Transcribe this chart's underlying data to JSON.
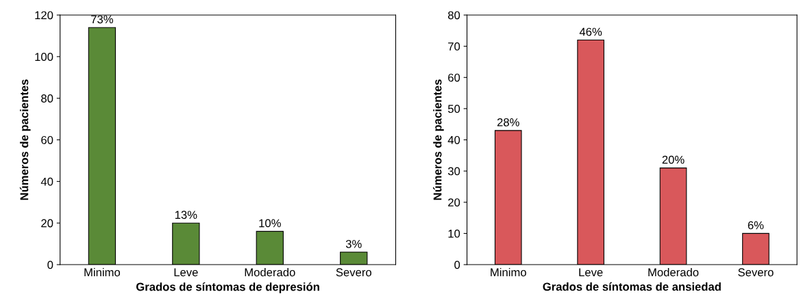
{
  "chart_data": [
    {
      "type": "bar",
      "categories": [
        "Minimo",
        "Leve",
        "Moderado",
        "Severo"
      ],
      "values": [
        114,
        20,
        16,
        6
      ],
      "color": "#5a8a37",
      "xlabel": "Grados de síntomas de depresión",
      "ylabel": "Números de pacientes",
      "ylim": [
        0,
        120
      ],
      "yticks": [
        0,
        20,
        40,
        60,
        80,
        100,
        120
      ],
      "grid": false,
      "legend": false,
      "annotations": [
        {
          "text": "73%",
          "x": "Minimo",
          "y": 114
        },
        {
          "text": "13%",
          "x": "Leve",
          "y": 20
        },
        {
          "text": "10%",
          "x": "Moderado",
          "y": 16
        },
        {
          "text": "3%",
          "x": "Severo",
          "y": 6
        }
      ]
    },
    {
      "type": "bar",
      "categories": [
        "Minimo",
        "Leve",
        "Moderado",
        "Severo"
      ],
      "values": [
        43,
        72,
        31,
        10
      ],
      "color": "#d9585b",
      "xlabel": "Grados de síntomas de ansiedad",
      "ylabel": "Números de pacientes",
      "ylim": [
        0,
        80
      ],
      "yticks": [
        0,
        10,
        20,
        30,
        40,
        50,
        60,
        70,
        80
      ],
      "grid": false,
      "legend": false,
      "annotations": [
        {
          "text": "28%",
          "x": "Minimo",
          "y": 43
        },
        {
          "text": "46%",
          "x": "Leve",
          "y": 72
        },
        {
          "text": "20%",
          "x": "Moderado",
          "y": 31
        },
        {
          "text": "6%",
          "x": "Severo",
          "y": 10
        }
      ]
    }
  ]
}
